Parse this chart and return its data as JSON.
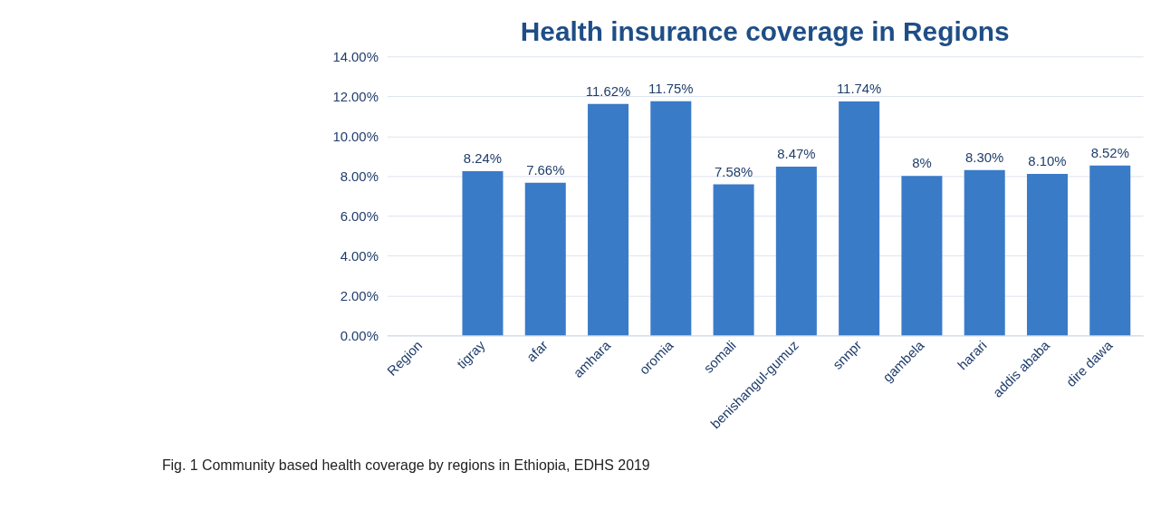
{
  "chart_data": {
    "type": "bar",
    "title": "Health insurance coverage in Regions",
    "categories": [
      "Region",
      "tigray",
      "afar",
      "amhara",
      "oromia",
      "somali",
      "benishangul-gumuz",
      "snnpr",
      "gambela",
      "harari",
      "addis ababa",
      "dire dawa"
    ],
    "values": [
      null,
      8.24,
      7.66,
      11.62,
      11.75,
      7.58,
      8.47,
      11.74,
      8,
      8.3,
      8.1,
      8.52
    ],
    "value_labels": [
      null,
      "8.24%",
      "7.66%",
      "11.62%",
      "11.75%",
      "7.58%",
      "8.47%",
      "11.74%",
      "8%",
      "8.30%",
      "8.10%",
      "8.52%"
    ],
    "color": "#3a7bc8",
    "ylim": [
      0,
      14
    ],
    "yticks": [
      {
        "value": 0,
        "label": "0.00%"
      },
      {
        "value": 2,
        "label": "2.00%"
      },
      {
        "value": 4,
        "label": "4.00%"
      },
      {
        "value": 6,
        "label": "6.00%"
      },
      {
        "value": 8,
        "label": "8.00%"
      },
      {
        "value": 10,
        "label": "10.00%"
      },
      {
        "value": 12,
        "label": "12.00%"
      },
      {
        "value": 14,
        "label": "14.00%"
      }
    ],
    "grid": "y",
    "annotations": [
      "Fig. 1  Community based health coverage by regions in Ethiopia, EDHS 2019"
    ]
  }
}
